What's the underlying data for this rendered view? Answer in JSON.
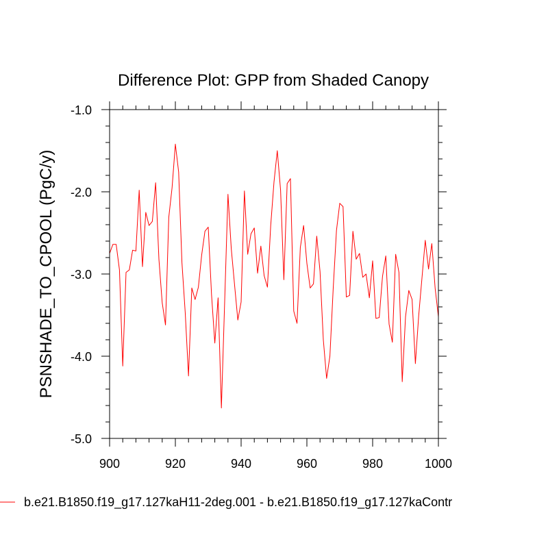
{
  "chart_data": {
    "type": "line",
    "title": "Difference Plot: GPP from Shaded Canopy",
    "xlabel": "",
    "ylabel": "PSNSHADE_TO_CPOOL  (PgC/y)",
    "xlim": [
      900,
      1000
    ],
    "ylim": [
      -5.0,
      -1.0
    ],
    "x_ticks": [
      900,
      920,
      940,
      960,
      980,
      1000
    ],
    "x_tick_labels": [
      "900",
      "920",
      "940",
      "960",
      "980",
      "1000"
    ],
    "y_ticks": [
      -1.0,
      -2.0,
      -3.0,
      -4.0,
      -5.0
    ],
    "y_tick_labels": [
      "-1.0",
      "-2.0",
      "-3.0",
      "-4.0",
      "-5.0"
    ],
    "series": [
      {
        "name": "b.e21.B1850.f19_g17.127kaH11-2deg.001 - b.e21.B1850.f19_g17.127kaContr",
        "color": "#ff0000",
        "x": [
          900,
          901,
          902,
          903,
          904,
          905,
          906,
          907,
          908,
          909,
          910,
          911,
          912,
          913,
          914,
          915,
          916,
          917,
          918,
          919,
          920,
          921,
          922,
          923,
          924,
          925,
          926,
          927,
          928,
          929,
          930,
          931,
          932,
          933,
          934,
          935,
          936,
          937,
          938,
          939,
          940,
          941,
          942,
          943,
          944,
          945,
          946,
          947,
          948,
          949,
          950,
          951,
          952,
          953,
          954,
          955,
          956,
          957,
          958,
          959,
          960,
          961,
          962,
          963,
          964,
          965,
          966,
          967,
          968,
          969,
          970,
          971,
          972,
          973,
          974,
          975,
          976,
          977,
          978,
          979,
          980,
          981,
          982,
          983,
          984,
          985,
          986,
          987,
          988,
          989,
          990,
          991,
          992,
          993,
          994,
          995,
          996,
          997,
          998,
          999,
          1000
        ],
        "values": [
          -2.75,
          -2.64,
          -2.64,
          -2.95,
          -4.12,
          -2.98,
          -2.95,
          -2.71,
          -2.72,
          -1.98,
          -2.91,
          -2.25,
          -2.41,
          -2.36,
          -1.89,
          -2.82,
          -3.35,
          -3.62,
          -2.31,
          -1.95,
          -1.42,
          -1.76,
          -2.86,
          -3.47,
          -4.24,
          -3.17,
          -3.31,
          -3.16,
          -2.77,
          -2.48,
          -2.43,
          -3.25,
          -3.84,
          -3.29,
          -4.63,
          -3.33,
          -2.03,
          -2.69,
          -3.13,
          -3.56,
          -3.34,
          -1.99,
          -2.76,
          -2.51,
          -2.44,
          -2.99,
          -2.66,
          -3.02,
          -3.16,
          -2.41,
          -1.88,
          -1.5,
          -1.98,
          -3.07,
          -1.9,
          -1.84,
          -3.45,
          -3.6,
          -2.68,
          -2.41,
          -2.87,
          -3.17,
          -3.12,
          -2.54,
          -2.97,
          -3.8,
          -4.27,
          -4.0,
          -3.18,
          -2.47,
          -2.14,
          -2.18,
          -3.28,
          -3.26,
          -2.48,
          -2.82,
          -2.75,
          -3.04,
          -3.0,
          -3.29,
          -2.84,
          -3.54,
          -3.53,
          -3.03,
          -2.78,
          -3.61,
          -3.83,
          -2.76,
          -2.98,
          -4.31,
          -3.52,
          -3.2,
          -3.31,
          -4.09,
          -3.51,
          -3.05,
          -2.59,
          -2.94,
          -2.63,
          -3.17,
          -3.52
        ]
      }
    ],
    "legend_position": "bottom-left"
  }
}
